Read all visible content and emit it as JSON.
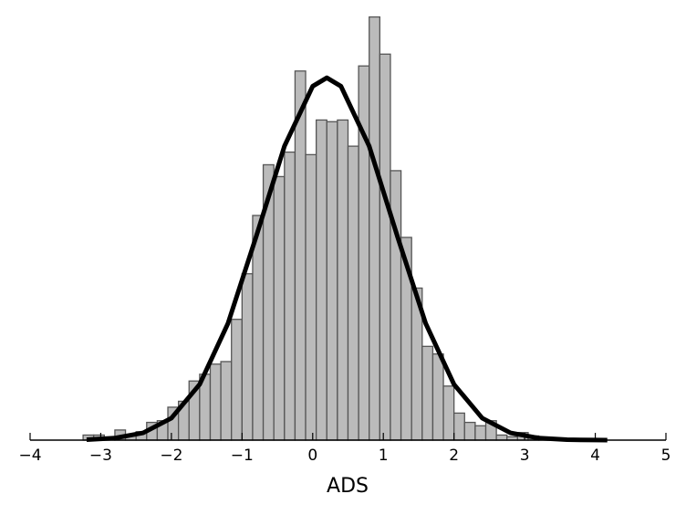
{
  "chart_data": {
    "type": "histogram",
    "x_label": "ADS",
    "bins": [
      -3.25,
      -3.1,
      -2.95,
      -2.8,
      -2.65,
      -2.5,
      -2.35,
      -2.2,
      -2.05,
      -1.9,
      -1.75,
      -1.6,
      -1.45,
      -1.3,
      -1.15,
      -1.0,
      -0.85,
      -0.7,
      -0.55,
      -0.4,
      -0.25,
      -0.1,
      0.05,
      0.2,
      0.35,
      0.5,
      0.65,
      0.8,
      0.95,
      1.1,
      1.25,
      1.4,
      1.55,
      1.7,
      1.85,
      2.0,
      2.15,
      2.3,
      2.45,
      2.6,
      2.75,
      2.9,
      3.05,
      3.2,
      3.35,
      3.5,
      3.65,
      3.8,
      3.95,
      4.1
    ],
    "values": [
      0.006,
      0.006,
      0.001,
      0.012,
      0.005,
      0.01,
      0.021,
      0.023,
      0.039,
      0.046,
      0.07,
      0.078,
      0.09,
      0.093,
      0.143,
      0.197,
      0.266,
      0.326,
      0.312,
      0.341,
      0.437,
      0.338,
      0.379,
      0.377,
      0.379,
      0.348,
      0.443,
      0.501,
      0.457,
      0.319,
      0.24,
      0.18,
      0.111,
      0.102,
      0.064,
      0.032,
      0.021,
      0.017,
      0.023,
      0.006,
      0.004,
      0.009,
      0.005,
      0.001,
      0,
      0.001,
      0,
      0,
      0
    ],
    "color": "#bbbbbb",
    "curve": {
      "color": "#000000",
      "x": [
        -3.2,
        -2.8,
        -2.4,
        -2.0,
        -1.6,
        -1.2,
        -0.8,
        -0.4,
        0.0,
        0.2,
        0.4,
        0.8,
        1.2,
        1.6,
        2.0,
        2.4,
        2.8,
        3.2,
        3.6,
        4.0,
        4.17
      ],
      "y": [
        0.0005,
        0.0024,
        0.0086,
        0.026,
        0.066,
        0.138,
        0.241,
        0.348,
        0.419,
        0.429,
        0.419,
        0.348,
        0.241,
        0.138,
        0.066,
        0.026,
        0.0086,
        0.0024,
        0.0005,
        0.0001,
        0
      ]
    },
    "xlim": [
      -4,
      5
    ],
    "ylim": [
      0,
      0.52
    ],
    "xticks": [
      {
        "value": -4,
        "label": "−4"
      },
      {
        "value": -3,
        "label": "−3"
      },
      {
        "value": -2,
        "label": "−2"
      },
      {
        "value": -1,
        "label": "−1"
      },
      0,
      1,
      2,
      3,
      4,
      5
    ]
  }
}
